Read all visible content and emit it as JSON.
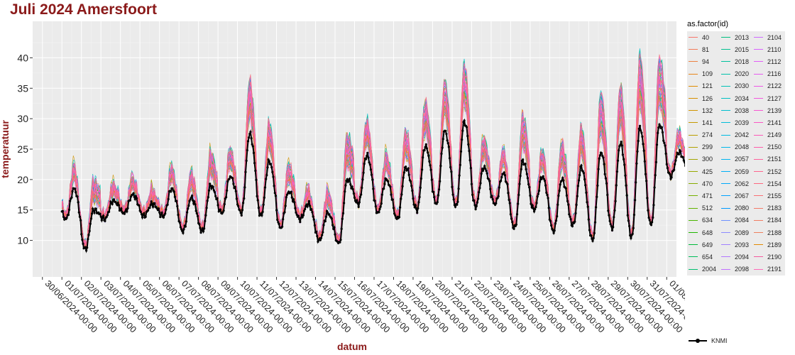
{
  "chart_data": {
    "type": "line",
    "title": "Juli 2024 Amersfoort",
    "xlabel": "datum",
    "ylabel": "temperatuur",
    "legend_title": "as.factor(id)",
    "legend_position": "right",
    "grid": true,
    "xlim": [
      "2024-06-29T12:00",
      "2024-08-01T12:00"
    ],
    "ylim": [
      4,
      46
    ],
    "y_ticks": [
      10,
      15,
      20,
      25,
      30,
      35,
      40
    ],
    "x_ticks": [
      "30/06/2024-00:00",
      "01/07/2024-00:00",
      "02/07/2024-00:00",
      "03/07/2024-00:00",
      "04/07/2024-00:00",
      "05/07/2024-00:00",
      "06/07/2024-00:00",
      "07/07/2024-00:00",
      "08/07/2024-00:00",
      "09/07/2024-00:00",
      "10/07/2024-00:00",
      "11/07/2024-00:00",
      "12/07/2024-00:00",
      "13/07/2024-00:00",
      "14/07/2024-00:00",
      "15/07/2024-00:00",
      "16/07/2024-00:00",
      "17/07/2024-00:00",
      "18/07/2024-00:00",
      "19/07/2024-00:00",
      "20/07/2024-00:00",
      "21/07/2024-00:00",
      "22/07/2024-00:00",
      "23/07/2024-00:00",
      "24/07/2024-00:00",
      "25/07/2024-00:00",
      "26/07/2024-00:00",
      "27/07/2024-00:00",
      "28/07/2024-00:00",
      "29/07/2024-00:00",
      "30/07/2024-00:00",
      "31/07/2024-00:00",
      "01/08/2024-00:00"
    ],
    "series_names": [
      "40",
      "81",
      "94",
      "109",
      "121",
      "126",
      "132",
      "141",
      "274",
      "299",
      "300",
      "425",
      "470",
      "471",
      "512",
      "634",
      "648",
      "649",
      "654",
      "2004",
      "2013",
      "2015",
      "2018",
      "2020",
      "2030",
      "2034",
      "2038",
      "2039",
      "2042",
      "2048",
      "2057",
      "2059",
      "2062",
      "2067",
      "2080",
      "2084",
      "2089",
      "2093",
      "2094",
      "2098",
      "2104",
      "2110",
      "2112",
      "2116",
      "2122",
      "2127",
      "2139",
      "2141",
      "2149",
      "2150",
      "2151",
      "2152",
      "2154",
      "2155",
      "2183",
      "2184",
      "2188",
      "2189",
      "2190",
      "2191"
    ],
    "series_colors": [
      "#F8766D",
      "#F37B59",
      "#ED8141",
      "#E7861B",
      "#E08B00",
      "#D89000",
      "#CF9400",
      "#C59900",
      "#BB9D00",
      "#B0A100",
      "#A3A500",
      "#96A900",
      "#87AC00",
      "#76AF00",
      "#62B200",
      "#4AB500",
      "#1FB700",
      "#00BA38",
      "#00BC59",
      "#00BE6E",
      "#00BF80",
      "#00C08F",
      "#00C19D",
      "#00C1AA",
      "#00C1B7",
      "#00C0C3",
      "#00BFCE",
      "#00BDD8",
      "#00BBE2",
      "#00B8EA",
      "#00B4F0",
      "#00AFF6",
      "#00A9FB",
      "#00A2FF",
      "#009AFF",
      "#6E92FF",
      "#8C8BFF",
      "#A080FF",
      "#B278FF",
      "#C16FFF",
      "#CE68FF",
      "#D962FF",
      "#E25DF8",
      "#E85AF1",
      "#EE57E7",
      "#F356DD",
      "#F756D1",
      "#FA57C5",
      "#FC59B8",
      "#FE5CAA",
      "#FF609C",
      "#FF648E",
      "#FD6880",
      "#F96E74",
      "#F37968",
      "#F17C63",
      "#EE7F5E",
      "#E38900",
      "#F45A9E",
      "#FF6AB8"
    ],
    "knmi": {
      "name": "KNMI",
      "color": "#000000",
      "daily_min": [
        13.5,
        8.5,
        13.5,
        14.5,
        14.0,
        14.0,
        11.5,
        11.5,
        14.5,
        14.5,
        14.0,
        12.0,
        13.5,
        10.0,
        9.5,
        16.0,
        14.5,
        13.5,
        15.0,
        16.0,
        15.5,
        15.5,
        16.0,
        12.0,
        15.0,
        11.5,
        12.5,
        10.0,
        12.0,
        10.5,
        12.5,
        20.5
      ],
      "daily_max": [
        18.5,
        15.0,
        16.5,
        17.5,
        16.0,
        18.5,
        17.0,
        19.0,
        20.5,
        27.5,
        23.0,
        18.0,
        16.0,
        14.5,
        20.0,
        24.0,
        20.0,
        22.0,
        25.5,
        28.0,
        29.5,
        22.0,
        21.0,
        23.0,
        20.5,
        20.0,
        22.0,
        24.5,
        26.0,
        28.5,
        29.0,
        24.5
      ]
    }
  }
}
